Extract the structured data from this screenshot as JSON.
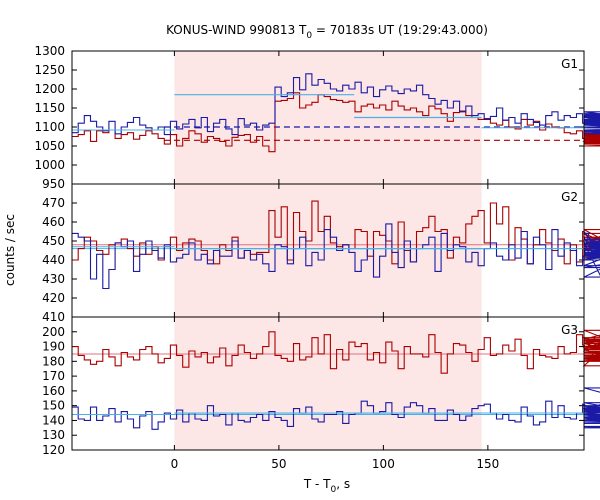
{
  "header": {
    "title_main": "KONUS-WIND 990813 T",
    "title_sub": "0",
    "title_rest": " = 70183s UT (19:29:43.000)"
  },
  "axes": {
    "xlabel_main": "T - T",
    "xlabel_sub": "0",
    "xlabel_rest": ", s",
    "ylabel": "counts / sec"
  },
  "colors": {
    "red": "#aa0000",
    "blue": "#1a1aa6",
    "fit": "#4ab0e8",
    "shade": "#fde6e6",
    "bgline": "#aa0000",
    "bgline_blue": "#1a1aa6"
  },
  "chart_data": {
    "type": "line",
    "title": "KONUS-WIND 990813 T0 = 70183s UT (19:29:43.000)",
    "xlabel": "T - T0, s",
    "ylabel": "counts / sec",
    "xlim": [
      -49,
      196
    ],
    "x_ticks": [
      "0",
      "50",
      "100",
      "150"
    ],
    "shaded_interval": [
      0,
      147
    ],
    "bin_start": -49,
    "bin_width": 2.944,
    "panels": [
      {
        "label": "G1",
        "ylim": [
          950,
          1300
        ],
        "y_ticks": [
          "950",
          "1000",
          "1050",
          "1100",
          "1150",
          "1200",
          "1250",
          "1300"
        ],
        "background_levels": {
          "red": 1065,
          "blue": 1100
        },
        "series": [
          {
            "color": "red",
            "values": [
              1075,
              1080,
              1090,
              1062,
              1090,
              1085,
              1092,
              1070,
              1080,
              1085,
              1068,
              1078,
              1090,
              1082,
              1070,
              1055,
              1080,
              1050,
              1070,
              1090,
              1082,
              1060,
              1075,
              1070,
              1062,
              1050,
              1073,
              1078,
              1080,
              1060,
              1075,
              1050,
              1035,
              1168,
              1170,
              1175,
              1190,
              1150,
              1158,
              1165,
              1185,
              1180,
              1172,
              1170,
              1165,
              1168,
              1140,
              1155,
              1160,
              1150,
              1158,
              1145,
              1168,
              1155,
              1145,
              1150,
              1140,
              1130,
              1155,
              1148,
              1135,
              1115,
              1138,
              1142,
              1130,
              1125,
              1120,
              1122,
              1110,
              1105,
              1118,
              1100,
              1095,
              1120,
              1105,
              1115,
              1092,
              1108,
              1100,
              1098,
              1085,
              1082,
              1090,
              1070,
              1062,
              1080,
              1065,
              1092,
              1078,
              1070,
              1065,
              1080,
              1072,
              1062,
              1082,
              1075,
              1070,
              1068,
              1075,
              1068,
              1070,
              1060,
              1068,
              1058,
              1070,
              1062,
              1075,
              1070,
              1078,
              1062,
              1058,
              1075,
              1068,
              1082,
              1070,
              1060,
              1072,
              1065,
              1055,
              1070,
              1050,
              1070,
              1085
            ]
          },
          {
            "color": "blue",
            "values": [
              1085,
              1110,
              1130,
              1115,
              1100,
              1090,
              1115,
              1082,
              1100,
              1112,
              1125,
              1105,
              1098,
              1092,
              1100,
              1080,
              1115,
              1095,
              1108,
              1120,
              1098,
              1125,
              1088,
              1110,
              1120,
              1095,
              1080,
              1122,
              1105,
              1110,
              1092,
              1105,
              1110,
              1205,
              1180,
              1190,
              1230,
              1198,
              1240,
              1210,
              1225,
              1215,
              1200,
              1195,
              1210,
              1200,
              1218,
              1190,
              1205,
              1180,
              1198,
              1208,
              1195,
              1188,
              1200,
              1195,
              1210,
              1185,
              1175,
              1160,
              1170,
              1150,
              1168,
              1140,
              1155,
              1130,
              1135,
              1120,
              1128,
              1150,
              1118,
              1125,
              1110,
              1135,
              1120,
              1112,
              1105,
              1130,
              1140,
              1118,
              1130,
              1125,
              1135,
              1110,
              1118,
              1125,
              1130,
              1135,
              1108,
              1125,
              1130,
              1115,
              1140,
              1120,
              1135,
              1128,
              1110,
              1118,
              1125,
              1105,
              1128,
              1115,
              1100,
              1110,
              1135,
              1120,
              1112,
              1125,
              1105,
              1118,
              1100,
              1090,
              1105,
              1082,
              1120,
              1108,
              1098,
              1092,
              1110,
              1100,
              1088,
              1110,
              1105
            ]
          }
        ],
        "fit": {
          "levels": [
            [
              0,
              86,
              1185
            ],
            [
              86,
              147,
              1125
            ]
          ],
          "pre": 1092,
          "post": 1098
        }
      },
      {
        "label": "G2",
        "ylim": [
          410,
          480
        ],
        "y_ticks": [
          "410",
          "420",
          "430",
          "440",
          "450",
          "460",
          "470"
        ],
        "background_levels": {
          "red": 448,
          "blue": 446
        },
        "series": [
          {
            "color": "red",
            "values": [
              440,
              446,
              452,
              450,
              445,
              443,
              448,
              449,
              451,
              446,
              442,
              449,
              443,
              447,
              440,
              447,
              452,
              445,
              449,
              451,
              450,
              445,
              440,
              438,
              448,
              445,
              452,
              441,
              445,
              443,
              444,
              444,
              466,
              452,
              468,
              440,
              465,
              455,
              450,
              471,
              455,
              463,
              449,
              447,
              448,
              446,
              456,
              455,
              442,
              455,
              453,
              450,
              438,
              460,
              445,
              439,
              455,
              457,
              463,
              455,
              456,
              441,
              452,
              449,
              459,
              463,
              466,
              449,
              470,
              459,
              468,
              440,
              457,
              451,
              438,
              448,
              456,
              449,
              445,
              451,
              438,
              448,
              439,
              455,
              452,
              441,
              442,
              448,
              456,
              446,
              441,
              445,
              454,
              440,
              448,
              448,
              449,
              446,
              450,
              448,
              451,
              443,
              446,
              446,
              452,
              447,
              448,
              448,
              445,
              447,
              450,
              451,
              449,
              449,
              446,
              448,
              446,
              448,
              448,
              449,
              446,
              448,
              451
            ]
          },
          {
            "color": "blue",
            "values": [
              454,
              452,
              450,
              430,
              443,
              425,
              435,
              449,
              447,
              450,
              434,
              443,
              450,
              445,
              441,
              448,
              439,
              441,
              443,
              449,
              440,
              443,
              438,
              445,
              442,
              442,
              450,
              441,
              445,
              440,
              443,
              438,
              434,
              448,
              447,
              438,
              446,
              452,
              437,
              444,
              440,
              456,
              452,
              445,
              448,
              444,
              434,
              440,
              446,
              431,
              442,
              459,
              444,
              436,
              450,
              439,
              446,
              448,
              452,
              434,
              454,
              445,
              448,
              447,
              439,
              444,
              437,
              446,
              449,
              442,
              440,
              448,
              441,
              455,
              438,
              452,
              448,
              435,
              456,
              442,
              449,
              445,
              437,
              442,
              454,
              449,
              431,
              437,
              443,
              449,
              451,
              440,
              444,
              436,
              442,
              450,
              448,
              444,
              440,
              448,
              442,
              447,
              446,
              443,
              444,
              449,
              443,
              444,
              448,
              446,
              445,
              447,
              443,
              441,
              448,
              449,
              446,
              445,
              447,
              443,
              448,
              446,
              451
            ]
          }
        ],
        "fit": {
          "levels": [
            [
              0,
              147,
              446
            ]
          ],
          "pre": 447,
          "post": 446
        }
      },
      {
        "label": "G3",
        "ylim": [
          120,
          210
        ],
        "y_ticks": [
          "120",
          "130",
          "140",
          "150",
          "160",
          "170",
          "180",
          "190",
          "200"
        ],
        "background_levels": {
          "red": 185,
          "blue": 144
        },
        "series": [
          {
            "color": "red",
            "values": [
              190,
              184,
              181,
              178,
              180,
              188,
              183,
              177,
              186,
              183,
              181,
              188,
              190,
              185,
              179,
              182,
              191,
              184,
              176,
              187,
              183,
              186,
              179,
              183,
              189,
              177,
              184,
              191,
              186,
              182,
              185,
              190,
              200,
              184,
              182,
              180,
              192,
              181,
              183,
              196,
              185,
              198,
              175,
              188,
              181,
              193,
              190,
              192,
              181,
              186,
              179,
              193,
              187,
              175,
              190,
              185,
              185,
              183,
              198,
              186,
              172,
              185,
              192,
              191,
              186,
              180,
              188,
              196,
              184,
              185,
              191,
              187,
              195,
              184,
              175,
              188,
              184,
              183,
              182,
              190,
              185,
              186,
              198,
              191,
              187,
              196,
              189,
              177,
              195,
              201,
              190,
              194,
              192,
              183,
              189,
              186,
              190,
              182,
              190,
              195,
              190,
              181,
              188,
              189,
              186,
              190,
              193,
              180,
              186,
              194,
              181,
              189,
              184,
              182,
              187,
              183,
              190,
              185,
              190,
              187,
              186,
              181,
              196
            ]
          },
          {
            "color": "blue",
            "values": [
              149,
              141,
              140,
              149,
              140,
              143,
              148,
              139,
              146,
              141,
              135,
              143,
              146,
              134,
              139,
              145,
              141,
              147,
              139,
              145,
              141,
              140,
              150,
              143,
              144,
              137,
              145,
              140,
              139,
              142,
              144,
              140,
              146,
              142,
              140,
              136,
              148,
              145,
              149,
              141,
              139,
              144,
              144,
              146,
              138,
              144,
              145,
              153,
              150,
              145,
              146,
              152,
              144,
              142,
              149,
              152,
              150,
              145,
              148,
              140,
              140,
              147,
              144,
              140,
              143,
              148,
              150,
              151,
              145,
              141,
              144,
              140,
              139,
              149,
              143,
              137,
              139,
              153,
              142,
              150,
              142,
              141,
              145,
              151,
              148,
              140,
              141,
              144,
              146,
              152,
              147,
              141,
              143,
              147,
              162,
              149,
              146,
              143,
              143,
              145,
              149,
              143,
              138,
              140,
              146,
              143,
              143,
              135,
              140,
              148,
              149,
              143,
              141,
              150,
              139,
              142,
              145,
              148,
              147,
              143,
              148,
              140,
              136
            ]
          }
        ],
        "fit": {
          "levels": [
            [
              0,
              147,
              145
            ]
          ],
          "pre": 144,
          "post": 145
        }
      }
    ]
  }
}
